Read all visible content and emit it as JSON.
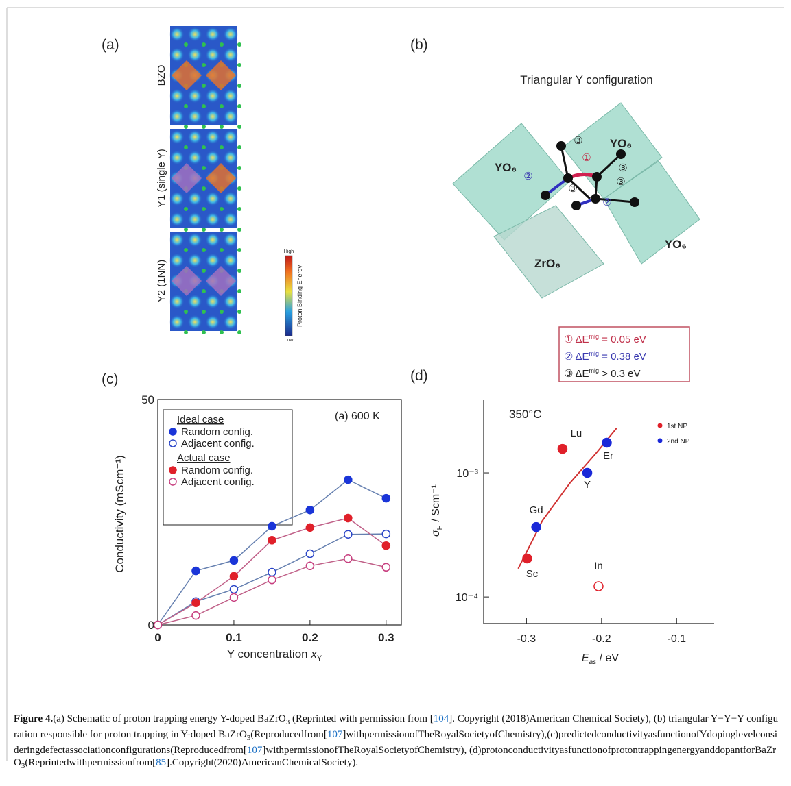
{
  "panels": {
    "a": {
      "label": "(a)",
      "rows": [
        "BZO",
        "Y1 (single Y)",
        "Y2 (1NN)"
      ],
      "colorbar": {
        "high": "High",
        "low": "Low",
        "title": "Proton Binding Energy"
      }
    },
    "b": {
      "label": "(b)",
      "title": "Triangular Y configuration",
      "octahedra": [
        "YO₆",
        "YO₆",
        "YO₆",
        "ZrO₆"
      ],
      "path_labels": [
        "①",
        "②",
        "②",
        "③",
        "③",
        "③",
        "③"
      ],
      "legend": [
        {
          "marker": "①",
          "symbol": "ΔE",
          "sup": "mig",
          "text": " = 0.05 eV",
          "color": "#c0304a"
        },
        {
          "marker": "②",
          "symbol": "ΔE",
          "sup": "mig",
          "text": " = 0.38 eV",
          "color": "#3a3ab0"
        },
        {
          "marker": "③",
          "symbol": "ΔE",
          "sup": "mig",
          "text": " > 0.3 eV",
          "color": "#222222"
        }
      ]
    },
    "c": {
      "label": "(c)"
    },
    "d": {
      "label": "(d)"
    }
  },
  "charts": [
    {
      "type": "line",
      "ylabel": "Conductivity (mScm⁻¹)",
      "xlabel": [
        "Y concentration ",
        "x",
        "Y"
      ],
      "annotation": "(a) 600 K",
      "x": [
        0,
        0.05,
        0.1,
        0.15,
        0.2,
        0.25,
        0.3
      ],
      "xlim": [
        0,
        0.32
      ],
      "xticks": [
        0,
        0.1,
        0.2,
        0.3
      ],
      "ylim": [
        0,
        50
      ],
      "yticks": [
        0,
        50
      ],
      "groups": [
        {
          "title": "Ideal case",
          "series": [
            {
              "name": "Random config.",
              "color": "#1a35d8",
              "line_color": "#6680b0",
              "open": false,
              "values": [
                0,
                12,
                14.3,
                21.9,
                25.5,
                32.2,
                28.1
              ]
            },
            {
              "name": "Adjacent config.",
              "color": "#2a45c8",
              "line_color": "#6680b0",
              "open": true,
              "values": [
                0,
                5.2,
                7.9,
                11.7,
                15.8,
                20.1,
                20.2
              ]
            }
          ]
        },
        {
          "title": "Actual case",
          "series": [
            {
              "name": "Random config.",
              "color": "#e0202a",
              "line_color": "#c06088",
              "open": false,
              "values": [
                0,
                4.9,
                10.8,
                18.8,
                21.6,
                23.7,
                17.6
              ]
            },
            {
              "name": "Adjacent config.",
              "color": "#c84080",
              "line_color": "#c06088",
              "open": true,
              "values": [
                0,
                2.1,
                6.1,
                10,
                13.1,
                14.7,
                12.8
              ]
            }
          ]
        }
      ]
    },
    {
      "type": "scatter",
      "log_y": true,
      "annotation": "350°C",
      "ylabel": {
        "symbol": "σ",
        "sub": "H",
        "unit": " / Scm⁻¹"
      },
      "xlabel": {
        "symbol": "E",
        "sub": "as",
        "unit": "  / eV"
      },
      "xlim": [
        -0.357,
        -0.05
      ],
      "xticks": [
        -0.3,
        -0.2,
        -0.1
      ],
      "ylim": [
        6.1e-05,
        0.0039
      ],
      "yticks": [
        {
          "value": 0.001,
          "label": "10⁻³"
        },
        {
          "value": 0.0001,
          "label": "10⁻⁴"
        }
      ],
      "series": [
        {
          "name": "1st NP",
          "color": "#e0202a",
          "labels": [
            "Sc",
            "Lu",
            "In"
          ],
          "open": [
            false,
            false,
            true
          ],
          "x": [
            -0.299,
            -0.252,
            -0.204
          ],
          "values": [
            0.000204,
            0.00156,
            0.000122
          ]
        },
        {
          "name": "2nd NP",
          "color": "#1a28d8",
          "labels": [
            "Gd",
            "Y",
            "Er"
          ],
          "open": [
            false,
            false,
            false
          ],
          "x": [
            -0.287,
            -0.219,
            -0.193
          ],
          "values": [
            0.000366,
            0.001,
            0.00175
          ]
        }
      ],
      "curve": {
        "color": "#d03030",
        "x": [
          -0.311,
          -0.279,
          -0.242,
          -0.206,
          -0.18
        ],
        "values": [
          0.000169,
          0.00041,
          0.00083,
          0.00147,
          0.00229
        ]
      }
    }
  ],
  "caption": [
    {
      "text": "Figure 4.",
      "style": "bold"
    },
    {
      "text": "(a) Schematic of proton trapping energy Y-doped BaZrO"
    },
    {
      "text": "3",
      "style": "sub"
    },
    {
      "text": " (Reprinted with permission from ["
    },
    {
      "text": "104",
      "style": "link"
    },
    {
      "text": "]. Copyright (2018)American Chemical Society), (b) triangular Y−Y−Y configuration responsible for proton trapping in Y-doped BaZrO"
    },
    {
      "text": "3",
      "style": "sub"
    },
    {
      "text": "(Reproducedfrom["
    },
    {
      "text": "107",
      "style": "link"
    },
    {
      "text": "]withpermissionofTheRoyalSocietyofChemistry),(c)predictedconductivityasfunctionofYdopinglevelconsideringdefectassociationconfigurations(Reproducedfrom["
    },
    {
      "text": "107",
      "style": "link"
    },
    {
      "text": "]withpermissionofTheRoyalSocietyofChemistry), (d)protonconductivityasfunctionofprotontrappingenergyanddopantforBaZrO"
    },
    {
      "text": "3",
      "style": "sub"
    },
    {
      "text": "(Reprintedwithpermissionfrom["
    },
    {
      "text": "85",
      "style": "link"
    },
    {
      "text": "].Copyright(2020)AmericanChemicalSociety)."
    }
  ]
}
